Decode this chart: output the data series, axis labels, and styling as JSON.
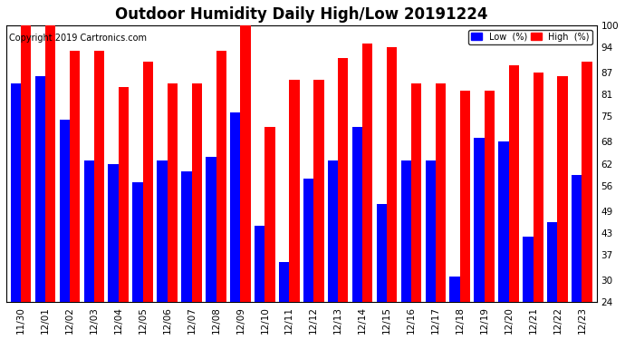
{
  "title": "Outdoor Humidity Daily High/Low 20191224",
  "copyright": "Copyright 2019 Cartronics.com",
  "categories": [
    "11/30",
    "12/01",
    "12/02",
    "12/03",
    "12/04",
    "12/05",
    "12/06",
    "12/07",
    "12/08",
    "12/09",
    "12/10",
    "12/11",
    "12/12",
    "12/13",
    "12/14",
    "12/15",
    "12/16",
    "12/17",
    "12/18",
    "12/19",
    "12/20",
    "12/21",
    "12/22",
    "12/23"
  ],
  "high_values": [
    100,
    100,
    93,
    93,
    83,
    90,
    84,
    84,
    93,
    100,
    72,
    85,
    85,
    91,
    95,
    94,
    84,
    84,
    82,
    82,
    89,
    87,
    86,
    90
  ],
  "low_values": [
    84,
    86,
    74,
    63,
    62,
    57,
    63,
    60,
    64,
    76,
    45,
    35,
    58,
    63,
    72,
    51,
    63,
    63,
    31,
    69,
    68,
    42,
    46,
    59
  ],
  "bar_width": 0.42,
  "high_color": "#FF0000",
  "low_color": "#0000FF",
  "background_color": "#FFFFFF",
  "plot_bg_color": "#FFFFFF",
  "ylim_min": 24,
  "ylim_max": 100,
  "yticks": [
    24,
    30,
    37,
    43,
    49,
    56,
    62,
    68,
    75,
    81,
    87,
    94,
    100
  ],
  "legend_low_label": "Low  (%)",
  "legend_high_label": "High  (%)",
  "title_fontsize": 12,
  "tick_fontsize": 7.5,
  "copyright_fontsize": 7
}
